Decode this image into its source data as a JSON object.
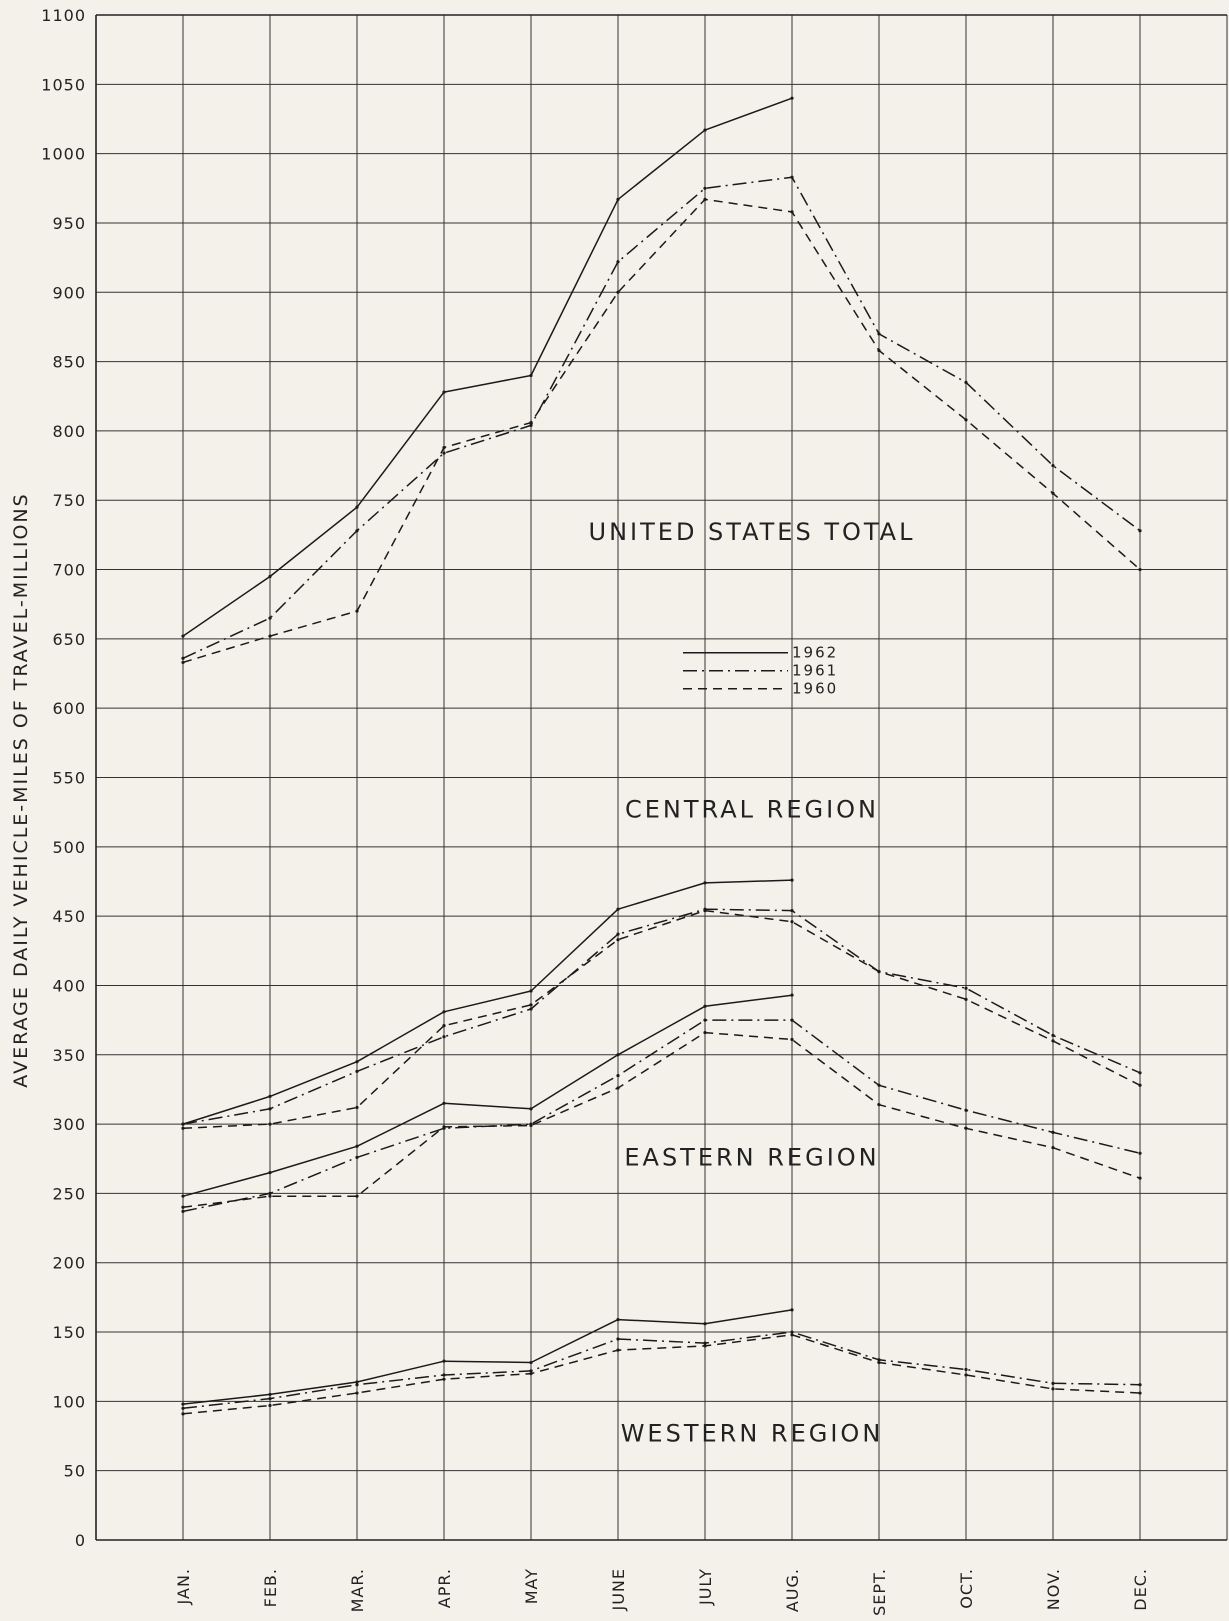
{
  "chart_data": {
    "type": "line",
    "ylabel": "AVERAGE DAILY VEHICLE-MILES OF TRAVEL-MILLIONS",
    "xlabel": "",
    "categories": [
      "JAN.",
      "FEB.",
      "MAR.",
      "APR.",
      "MAY",
      "JUNE",
      "JULY",
      "AUG.",
      "SEPT.",
      "OCT.",
      "NOV.",
      "DEC."
    ],
    "ylim": [
      0,
      1100
    ],
    "yticks": [
      0,
      50,
      100,
      150,
      200,
      250,
      300,
      350,
      400,
      450,
      500,
      550,
      600,
      650,
      700,
      750,
      800,
      850,
      900,
      950,
      1000,
      1050,
      1100
    ],
    "grid": true,
    "legend": {
      "placement": "center",
      "entries": [
        {
          "label": "1962",
          "style": "solid"
        },
        {
          "label": "1961",
          "style": "dash-dot"
        },
        {
          "label": "1960",
          "style": "dashed"
        }
      ]
    },
    "annotations": [
      {
        "text": "UNITED STATES TOTAL",
        "near": [
          7,
          727
        ]
      },
      {
        "text": "CENTRAL REGION",
        "near": [
          7,
          527
        ]
      },
      {
        "text": "EASTERN REGION",
        "near": [
          7,
          276
        ]
      },
      {
        "text": "WESTERN REGION",
        "near": [
          7,
          77
        ]
      }
    ],
    "groups": [
      {
        "name": "UNITED STATES TOTAL",
        "series": [
          {
            "year": "1962",
            "style": "solid",
            "values": [
              652,
              695,
              745,
              828,
              840,
              967,
              1017,
              1040,
              null,
              null,
              null,
              null
            ]
          },
          {
            "year": "1961",
            "style": "dash-dot",
            "values": [
              636,
              665,
              728,
              784,
              804,
              922,
              975,
              983,
              870,
              835,
              775,
              728
            ]
          },
          {
            "year": "1960",
            "style": "dashed",
            "values": [
              633,
              652,
              670,
              788,
              806,
              900,
              967,
              958,
              858,
              808,
              755,
              700
            ]
          }
        ]
      },
      {
        "name": "CENTRAL REGION",
        "series": [
          {
            "year": "1962",
            "style": "solid",
            "values": [
              300,
              320,
              345,
              381,
              396,
              455,
              474,
              476,
              null,
              null,
              null,
              null
            ]
          },
          {
            "year": "1961",
            "style": "dash-dot",
            "values": [
              300,
              311,
              338,
              363,
              383,
              437,
              455,
              454,
              410,
              398,
              364,
              337
            ]
          },
          {
            "year": "1960",
            "style": "dashed",
            "values": [
              297,
              300,
              312,
              371,
              386,
              433,
              454,
              446,
              410,
              390,
              360,
              328
            ]
          }
        ]
      },
      {
        "name": "EASTERN REGION",
        "series": [
          {
            "year": "1962",
            "style": "solid",
            "values": [
              248,
              265,
              284,
              315,
              311,
              350,
              385,
              393,
              null,
              null,
              null,
              null
            ]
          },
          {
            "year": "1961",
            "style": "dash-dot",
            "values": [
              237,
              250,
              276,
              297,
              300,
              335,
              375,
              375,
              328,
              310,
              294,
              279
            ]
          },
          {
            "year": "1960",
            "style": "dashed",
            "values": [
              240,
              248,
              248,
              298,
              299,
              326,
              366,
              361,
              314,
              297,
              283,
              261
            ]
          }
        ]
      },
      {
        "name": "WESTERN REGION",
        "series": [
          {
            "year": "1962",
            "style": "solid",
            "values": [
              98,
              105,
              114,
              129,
              128,
              159,
              156,
              166,
              null,
              null,
              null,
              null
            ]
          },
          {
            "year": "1961",
            "style": "dash-dot",
            "values": [
              95,
              102,
              112,
              119,
              122,
              145,
              142,
              150,
              130,
              123,
              113,
              112
            ]
          },
          {
            "year": "1960",
            "style": "dashed",
            "values": [
              91,
              97,
              106,
              116,
              120,
              137,
              140,
              148,
              128,
              119,
              109,
              106
            ]
          }
        ]
      }
    ]
  }
}
